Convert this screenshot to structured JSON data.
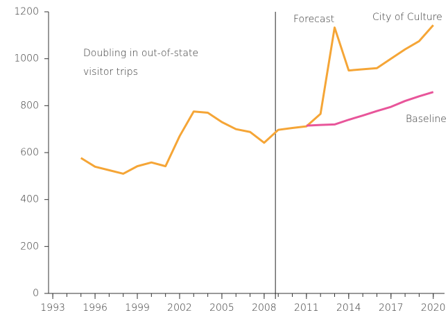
{
  "chart_data": {
    "type": "line",
    "annotations": [
      {
        "lines": [
          "Doubling in out-of-state",
          "visitor trips"
        ]
      },
      {
        "text": "Forecast"
      }
    ],
    "forecast_x": 2008.8,
    "xlim": [
      1992.7,
      2020.8
    ],
    "xticks": [
      1993,
      1996,
      1999,
      2002,
      2005,
      2008,
      2011,
      2014,
      2017,
      2020
    ],
    "xminorticks": [
      1993,
      1994,
      1995,
      1996,
      1997,
      1998,
      1999,
      2000,
      2001,
      2002,
      2003,
      2004,
      2005,
      2006,
      2007,
      2008,
      2009,
      2010,
      2011,
      2012,
      2013,
      2014,
      2015,
      2016,
      2017,
      2018,
      2019,
      2020
    ],
    "ylim": [
      0,
      1200
    ],
    "yticks": [
      0,
      200,
      400,
      600,
      800,
      1000,
      1200
    ],
    "series": [
      {
        "name": "City of Culture",
        "color": "#f5a536",
        "x": [
          1995,
          1996,
          1997,
          1998,
          1999,
          2000,
          2001,
          2002,
          2003,
          2004,
          2005,
          2006,
          2007,
          2008,
          2009,
          2010,
          2011,
          2012,
          2013,
          2014,
          2015,
          2016,
          2017,
          2018,
          2019,
          2020
        ],
        "values": [
          577,
          540,
          525,
          510,
          542,
          558,
          542,
          670,
          775,
          770,
          730,
          700,
          688,
          642,
          697,
          705,
          712,
          765,
          1133,
          950,
          955,
          960,
          1000,
          1040,
          1075,
          1143
        ]
      },
      {
        "name": "Baseline",
        "color": "#e8559a",
        "x": [
          2011,
          2012,
          2013,
          2014,
          2015,
          2016,
          2017,
          2018,
          2019,
          2020
        ],
        "values": [
          715,
          718,
          720,
          740,
          758,
          777,
          795,
          820,
          840,
          858
        ]
      }
    ]
  }
}
